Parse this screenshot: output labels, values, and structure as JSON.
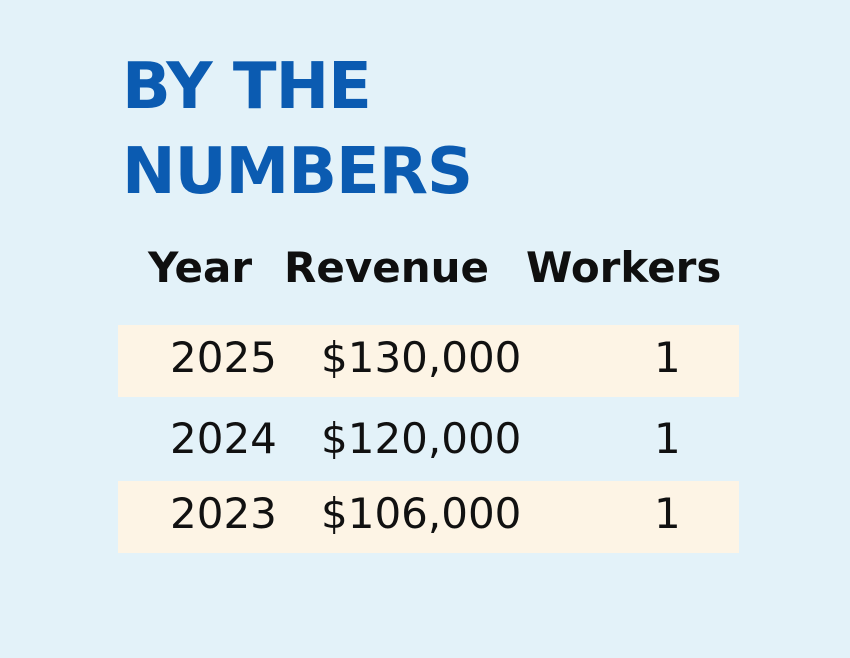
{
  "title": {
    "line1": "BY THE",
    "line2": "NUMBERS"
  },
  "colors": {
    "background": "#e3f2f9",
    "title": "#0b5bb1",
    "row_highlight": "#fdf4e5"
  },
  "chart_data": {
    "type": "table",
    "title": "BY THE NUMBERS",
    "columns": [
      "Year",
      "Revenue",
      "Workers"
    ],
    "rows": [
      {
        "year": "2025",
        "revenue": "$130,000",
        "workers": "1"
      },
      {
        "year": "2024",
        "revenue": "$120,000",
        "workers": "1"
      },
      {
        "year": "2023",
        "revenue": "$106,000",
        "workers": "1"
      }
    ]
  }
}
